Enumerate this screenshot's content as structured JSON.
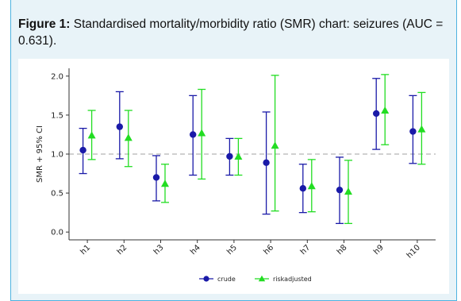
{
  "caption": {
    "label": "Figure 1:",
    "text": " Standardised mortality/morbidity ratio (SMR) chart: seizures (AUC = 0.631)."
  },
  "colors": {
    "crude": "#1a1aa8",
    "riskadjusted": "#22dd22",
    "reference_line": "#b5b5b5"
  },
  "chart_data": {
    "type": "scatter",
    "ylabel": "SMR + 95% CI",
    "xlabel": "",
    "ylim": [
      -0.1,
      2.1
    ],
    "yticks": [
      "0.0",
      "0.5",
      "1.0",
      "1.5",
      "2.0"
    ],
    "reference_line": 1.0,
    "categories": [
      "h1",
      "h2",
      "h3",
      "h4",
      "h5",
      "h6",
      "h7",
      "h8",
      "h9",
      "h10"
    ],
    "legend_position": "bottom",
    "series": [
      {
        "name": "crude",
        "marker": "circle",
        "values": [
          1.05,
          1.35,
          0.7,
          1.25,
          0.97,
          0.89,
          0.56,
          0.54,
          1.52,
          1.29
        ],
        "lower": [
          0.75,
          0.94,
          0.4,
          0.73,
          0.73,
          0.23,
          0.25,
          0.11,
          1.06,
          0.88
        ],
        "upper": [
          1.33,
          1.8,
          0.98,
          1.75,
          1.2,
          1.54,
          0.87,
          0.96,
          1.97,
          1.75
        ]
      },
      {
        "name": "riskadjusted",
        "marker": "triangle",
        "values": [
          1.24,
          1.21,
          0.62,
          1.27,
          0.97,
          1.11,
          0.59,
          0.52,
          1.56,
          1.32
        ],
        "lower": [
          0.93,
          0.84,
          0.38,
          0.68,
          0.73,
          0.27,
          0.26,
          0.11,
          1.12,
          0.87
        ],
        "upper": [
          1.56,
          1.56,
          0.87,
          1.83,
          1.2,
          2.01,
          0.93,
          0.92,
          2.02,
          1.79
        ]
      }
    ]
  }
}
